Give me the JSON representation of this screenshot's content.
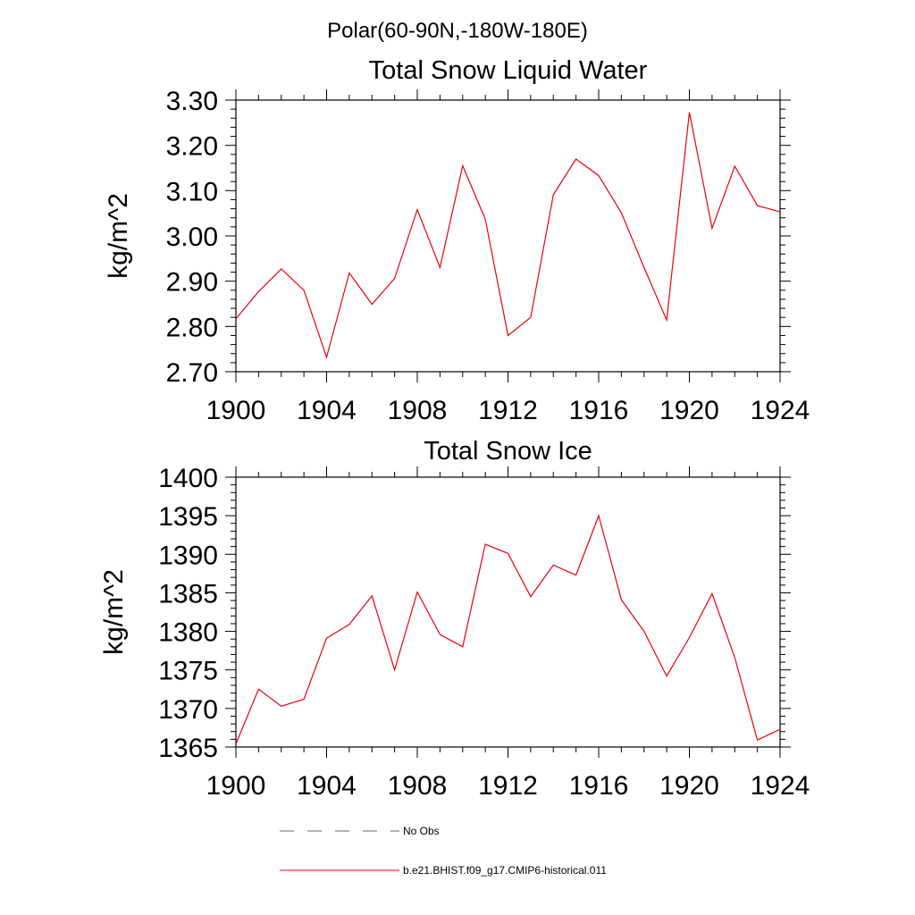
{
  "page": {
    "suptitle": "Polar(60-90N,-180W-180E)"
  },
  "chart_data": [
    {
      "type": "line",
      "title": "Total Snow Liquid Water",
      "xlabel": "",
      "ylabel": "kg/m^2",
      "xlim": [
        1900,
        1924
      ],
      "ylim": [
        2.7,
        3.3
      ],
      "x_ticks": [
        1900,
        1904,
        1908,
        1912,
        1916,
        1920,
        1924
      ],
      "x_tick_labels": [
        "1900",
        "1904",
        "1908",
        "1912",
        "1916",
        "1920",
        "1924"
      ],
      "y_ticks": [
        2.7,
        2.8,
        2.9,
        3.0,
        3.1,
        3.2,
        3.3
      ],
      "y_tick_labels": [
        "2.70",
        "2.80",
        "2.90",
        "3.00",
        "3.10",
        "3.20",
        "3.30"
      ],
      "grid": false,
      "series": [
        {
          "name": "b.e21.BHIST.f09_g17.CMIP6-historical.011",
          "color": "#e8000b",
          "x": [
            1900,
            1901,
            1902,
            1903,
            1904,
            1905,
            1906,
            1907,
            1908,
            1909,
            1910,
            1911,
            1912,
            1913,
            1914,
            1915,
            1916,
            1917,
            1918,
            1919,
            1920,
            1921,
            1922,
            1923,
            1924
          ],
          "values": [
            2.817,
            2.877,
            2.927,
            2.88,
            2.732,
            2.918,
            2.849,
            2.906,
            3.058,
            2.93,
            3.155,
            3.037,
            2.78,
            2.82,
            3.091,
            3.17,
            3.133,
            3.051,
            2.93,
            2.814,
            3.273,
            3.017,
            3.154,
            3.067,
            3.053
          ]
        }
      ]
    },
    {
      "type": "line",
      "title": "Total Snow Ice",
      "xlabel": "",
      "ylabel": "kg/m^2",
      "xlim": [
        1900,
        1924
      ],
      "ylim": [
        1365,
        1400
      ],
      "x_ticks": [
        1900,
        1904,
        1908,
        1912,
        1916,
        1920,
        1924
      ],
      "x_tick_labels": [
        "1900",
        "1904",
        "1908",
        "1912",
        "1916",
        "1920",
        "1924"
      ],
      "y_ticks": [
        1365,
        1370,
        1375,
        1380,
        1385,
        1390,
        1395,
        1400
      ],
      "y_tick_labels": [
        "1365",
        "1370",
        "1375",
        "1380",
        "1385",
        "1390",
        "1395",
        "1400"
      ],
      "grid": false,
      "series": [
        {
          "name": "b.e21.BHIST.f09_g17.CMIP6-historical.011",
          "color": "#e8000b",
          "x": [
            1900,
            1901,
            1902,
            1903,
            1904,
            1905,
            1906,
            1907,
            1908,
            1909,
            1910,
            1911,
            1912,
            1913,
            1914,
            1915,
            1916,
            1917,
            1918,
            1919,
            1920,
            1921,
            1922,
            1923,
            1924
          ],
          "values": [
            1365.4,
            1372.5,
            1370.3,
            1371.2,
            1379.1,
            1380.9,
            1384.6,
            1375.0,
            1385.1,
            1379.6,
            1378.0,
            1391.3,
            1390.1,
            1384.5,
            1388.6,
            1387.3,
            1395.0,
            1384.1,
            1380.0,
            1374.2,
            1379.2,
            1384.9,
            1376.6,
            1365.9,
            1367.3
          ]
        }
      ]
    }
  ],
  "legend": {
    "placement": "bottom-center",
    "items": [
      {
        "label": "No Obs",
        "color": "#5b5f8a",
        "style": "dashed"
      },
      {
        "label": "b.e21.BHIST.f09_g17.CMIP6-historical.011",
        "color": "#e8000b",
        "style": "solid"
      }
    ]
  }
}
